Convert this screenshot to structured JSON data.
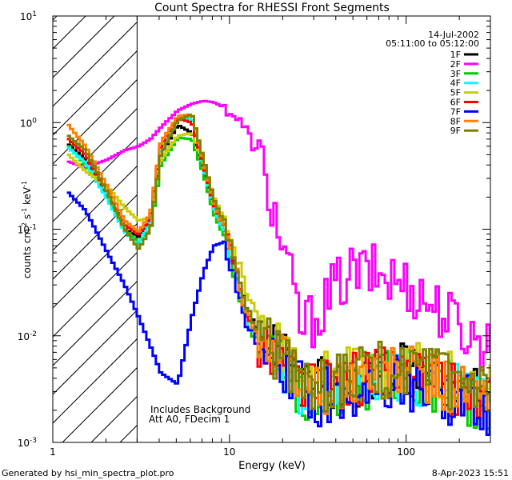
{
  "chart_data": {
    "type": "line",
    "title": "Count Spectra for RHESSI Front Segments",
    "xlabel": "Energy (keV)",
    "ylabel": "counts cm",
    "ylabel_sup1": "-2",
    "ylabel_mid": " s",
    "ylabel_sup2": "-1",
    "ylabel_end": " keV",
    "ylabel_sup3": "-1",
    "xscale": "log",
    "yscale": "log",
    "xlim": [
      1,
      300
    ],
    "ylim": [
      0.001,
      10
    ],
    "x_ticks": [
      {
        "value": 1,
        "label": "1"
      },
      {
        "value": 10,
        "label": "10"
      },
      {
        "value": 100,
        "label": "100"
      }
    ],
    "y_ticks": [
      {
        "value": 0.001,
        "base": "10",
        "exp": "-3"
      },
      {
        "value": 0.01,
        "base": "10",
        "exp": "-2"
      },
      {
        "value": 0.1,
        "base": "10",
        "exp": "-1"
      },
      {
        "value": 1,
        "base": "10",
        "exp": "0"
      },
      {
        "value": 10,
        "base": "10",
        "exp": "1"
      }
    ],
    "excluded_region_max": 3,
    "date_label": "14-Jul-2002",
    "time_range": "05:11:00 to 05:12:00",
    "annotation_lines": [
      "Includes Background",
      "Att A0, FDecim 1"
    ],
    "footer_left": "Generated by hsi_min_spectra_plot.pro",
    "footer_right": "8-Apr-2023 15:51",
    "series": [
      {
        "name": "1F",
        "color": "#000000",
        "x": [
          1.2,
          1.5,
          2.0,
          2.5,
          3.0,
          3.5,
          4.0,
          5.0,
          6.0,
          7.0,
          8.0,
          9.0,
          10.0,
          12.0,
          15.0,
          20.0,
          25.0,
          30.0,
          40.0,
          50.0,
          70.0,
          100.0,
          150.0,
          200.0,
          300.0
        ],
        "y": [
          0.62,
          0.45,
          0.2,
          0.1,
          0.085,
          0.12,
          0.5,
          0.95,
          0.8,
          0.35,
          0.16,
          0.1,
          0.06,
          0.018,
          0.0085,
          0.006,
          0.004,
          0.0035,
          0.0035,
          0.004,
          0.0045,
          0.0045,
          0.004,
          0.003,
          0.0025
        ]
      },
      {
        "name": "2F",
        "color": "#ff00ff",
        "x": [
          1.2,
          1.5,
          2.0,
          2.5,
          3.0,
          3.5,
          4.0,
          5.0,
          6.0,
          7.0,
          8.0,
          9.0,
          10.0,
          12.0,
          15.0,
          20.0,
          25.0,
          30.0,
          40.0,
          50.0,
          70.0,
          100.0,
          150.0,
          200.0,
          250.0,
          300.0
        ],
        "y": [
          0.43,
          0.38,
          0.45,
          0.55,
          0.6,
          0.7,
          0.9,
          1.3,
          1.5,
          1.6,
          1.55,
          1.4,
          1.25,
          0.9,
          0.4,
          0.06,
          0.012,
          0.015,
          0.03,
          0.04,
          0.038,
          0.03,
          0.018,
          0.012,
          0.009,
          0.008
        ]
      },
      {
        "name": "3F",
        "color": "#00cc00",
        "x": [
          1.2,
          1.5,
          2.0,
          2.5,
          3.0,
          3.5,
          4.0,
          5.0,
          6.0,
          7.0,
          8.0,
          9.0,
          10.0,
          12.0,
          15.0,
          20.0,
          25.0,
          30.0,
          40.0,
          50.0,
          70.0,
          100.0,
          150.0,
          200.0,
          300.0
        ],
        "y": [
          0.6,
          0.4,
          0.2,
          0.1,
          0.075,
          0.1,
          0.4,
          0.72,
          0.7,
          0.33,
          0.14,
          0.09,
          0.05,
          0.015,
          0.007,
          0.005,
          0.0032,
          0.0028,
          0.003,
          0.0035,
          0.0042,
          0.004,
          0.0035,
          0.0028,
          0.0022
        ]
      },
      {
        "name": "4F",
        "color": "#00ffff",
        "x": [
          1.2,
          1.5,
          2.0,
          2.5,
          3.0,
          3.5,
          4.0,
          5.0,
          6.0,
          7.0,
          8.0,
          9.0,
          10.0,
          12.0,
          15.0,
          20.0,
          25.0,
          30.0,
          40.0,
          50.0,
          70.0,
          100.0,
          150.0,
          200.0,
          300.0
        ],
        "y": [
          0.58,
          0.42,
          0.19,
          0.095,
          0.07,
          0.12,
          0.55,
          1.05,
          1.1,
          0.38,
          0.16,
          0.1,
          0.055,
          0.016,
          0.0075,
          0.0052,
          0.0034,
          0.003,
          0.0032,
          0.0037,
          0.0043,
          0.0042,
          0.0036,
          0.0029,
          0.0023
        ]
      },
      {
        "name": "5F",
        "color": "#cccc00",
        "x": [
          1.2,
          1.5,
          2.0,
          2.5,
          3.0,
          3.5,
          4.0,
          5.0,
          6.0,
          7.0,
          8.0,
          9.0,
          10.0,
          12.0,
          15.0,
          20.0,
          25.0,
          30.0,
          40.0,
          50.0,
          70.0,
          100.0,
          150.0,
          200.0,
          300.0
        ],
        "y": [
          0.5,
          0.35,
          0.25,
          0.16,
          0.12,
          0.13,
          0.45,
          0.75,
          0.8,
          0.42,
          0.2,
          0.13,
          0.08,
          0.03,
          0.012,
          0.007,
          0.0045,
          0.004,
          0.004,
          0.0045,
          0.005,
          0.005,
          0.0042,
          0.0035,
          0.0028
        ]
      },
      {
        "name": "6F",
        "color": "#ff0000",
        "x": [
          1.2,
          1.5,
          2.0,
          2.5,
          3.0,
          3.5,
          4.0,
          5.0,
          6.0,
          7.0,
          8.0,
          9.0,
          10.0,
          12.0,
          15.0,
          20.0,
          25.0,
          30.0,
          40.0,
          50.0,
          70.0,
          100.0,
          150.0,
          200.0,
          300.0
        ],
        "y": [
          0.7,
          0.5,
          0.22,
          0.11,
          0.09,
          0.13,
          0.6,
          1.1,
          1.0,
          0.4,
          0.17,
          0.11,
          0.065,
          0.018,
          0.008,
          0.0055,
          0.0036,
          0.0031,
          0.0033,
          0.0038,
          0.0044,
          0.0043,
          0.0037,
          0.003,
          0.0024
        ]
      },
      {
        "name": "7F",
        "color": "#0000ff",
        "x": [
          1.2,
          1.5,
          2.0,
          2.5,
          3.0,
          3.5,
          4.0,
          5.0,
          6.0,
          7.0,
          8.0,
          9.0,
          10.0,
          12.0,
          15.0,
          20.0,
          25.0,
          30.0,
          40.0,
          50.0,
          70.0,
          100.0,
          150.0,
          200.0,
          300.0
        ],
        "y": [
          0.22,
          0.15,
          0.06,
          0.03,
          0.015,
          0.008,
          0.0045,
          0.0035,
          0.015,
          0.04,
          0.07,
          0.075,
          0.045,
          0.014,
          0.0065,
          0.0045,
          0.003,
          0.0026,
          0.0028,
          0.0032,
          0.0036,
          0.0035,
          0.003,
          0.0024,
          0.002
        ]
      },
      {
        "name": "8F",
        "color": "#ff8000",
        "x": [
          1.2,
          1.5,
          2.0,
          2.5,
          3.0,
          3.5,
          4.0,
          5.0,
          6.0,
          7.0,
          8.0,
          9.0,
          10.0,
          12.0,
          15.0,
          20.0,
          25.0,
          30.0,
          40.0,
          50.0,
          70.0,
          100.0,
          150.0,
          200.0,
          300.0
        ],
        "y": [
          0.95,
          0.6,
          0.25,
          0.12,
          0.095,
          0.14,
          0.65,
          1.15,
          1.2,
          0.42,
          0.18,
          0.11,
          0.065,
          0.019,
          0.0085,
          0.0058,
          0.0038,
          0.0033,
          0.0035,
          0.004,
          0.0046,
          0.0045,
          0.0039,
          0.0031,
          0.0025
        ]
      },
      {
        "name": "9F",
        "color": "#808000",
        "x": [
          1.2,
          1.5,
          2.0,
          2.5,
          3.0,
          3.5,
          4.0,
          5.0,
          6.0,
          7.0,
          8.0,
          9.0,
          10.0,
          12.0,
          15.0,
          20.0,
          25.0,
          30.0,
          40.0,
          50.0,
          70.0,
          100.0,
          150.0,
          200.0,
          300.0
        ],
        "y": [
          0.75,
          0.55,
          0.22,
          0.1,
          0.065,
          0.1,
          0.5,
          1.05,
          1.2,
          0.45,
          0.19,
          0.12,
          0.07,
          0.02,
          0.009,
          0.006,
          0.0039,
          0.0034,
          0.0036,
          0.0041,
          0.0047,
          0.0046,
          0.004,
          0.0032,
          0.0026
        ]
      }
    ]
  }
}
